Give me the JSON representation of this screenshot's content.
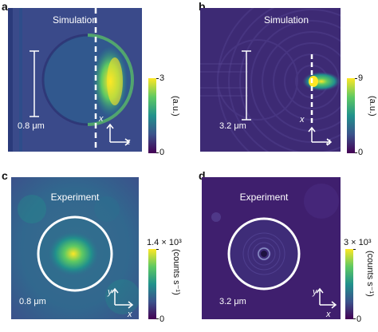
{
  "panels": [
    {
      "label": "a",
      "title": "Simulation",
      "scale_text": "0.8 μm",
      "axes": [
        "x",
        "z"
      ],
      "colorbar": {
        "max": "3",
        "min": "0",
        "unit": "(a.u.)"
      }
    },
    {
      "label": "b",
      "title": "Simulation",
      "scale_text": "3.2 μm",
      "axes": [
        "x",
        "z"
      ],
      "colorbar": {
        "max": "9",
        "min": "0",
        "unit": "(a.u.)"
      }
    },
    {
      "label": "c",
      "title": "Experiment",
      "scale_text": "0.8 μm",
      "axes": [
        "y",
        "x"
      ],
      "colorbar": {
        "max": "1.4 × 10³",
        "min": "0",
        "unit": "(counts s⁻¹)"
      }
    },
    {
      "label": "d",
      "title": "Experiment",
      "scale_text": "3.2 μm",
      "axes": [
        "y",
        "x"
      ],
      "colorbar": {
        "max": "3 × 10³",
        "min": "0",
        "unit": "(counts s⁻¹)"
      }
    }
  ],
  "colors": {
    "viridis_low": "#440154",
    "viridis_mid": "#21918c",
    "viridis_high": "#fde725"
  }
}
